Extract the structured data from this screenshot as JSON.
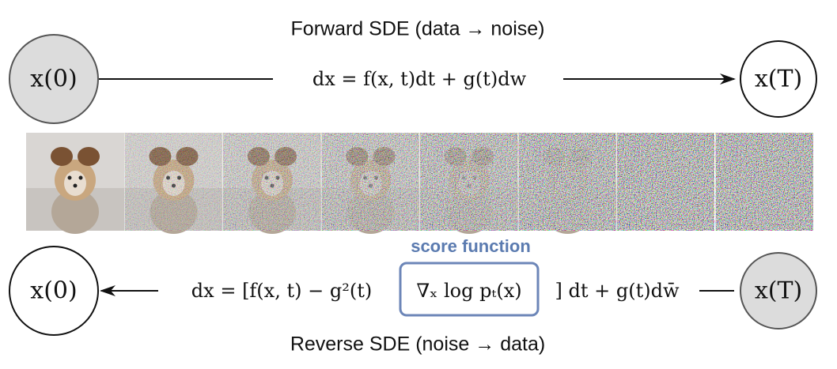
{
  "title_forward": "Forward SDE (data → noise)",
  "title_reverse": "Reverse SDE (noise → data)",
  "nodes": [
    {
      "label": "x(0)"
    },
    {
      "label": "x(T)"
    },
    {
      "label": "x(0)"
    },
    {
      "label": "x(T)"
    }
  ],
  "forward_equation": "dx = f(x, t)dt + g(t)dw",
  "reverse_equation": {
    "left": "dx = [f(x, t) − g²(t)",
    "score": "∇ₓ log pₜ(x)",
    "right": "] dt + g(t)dw̄"
  },
  "score_label": "score function"
}
